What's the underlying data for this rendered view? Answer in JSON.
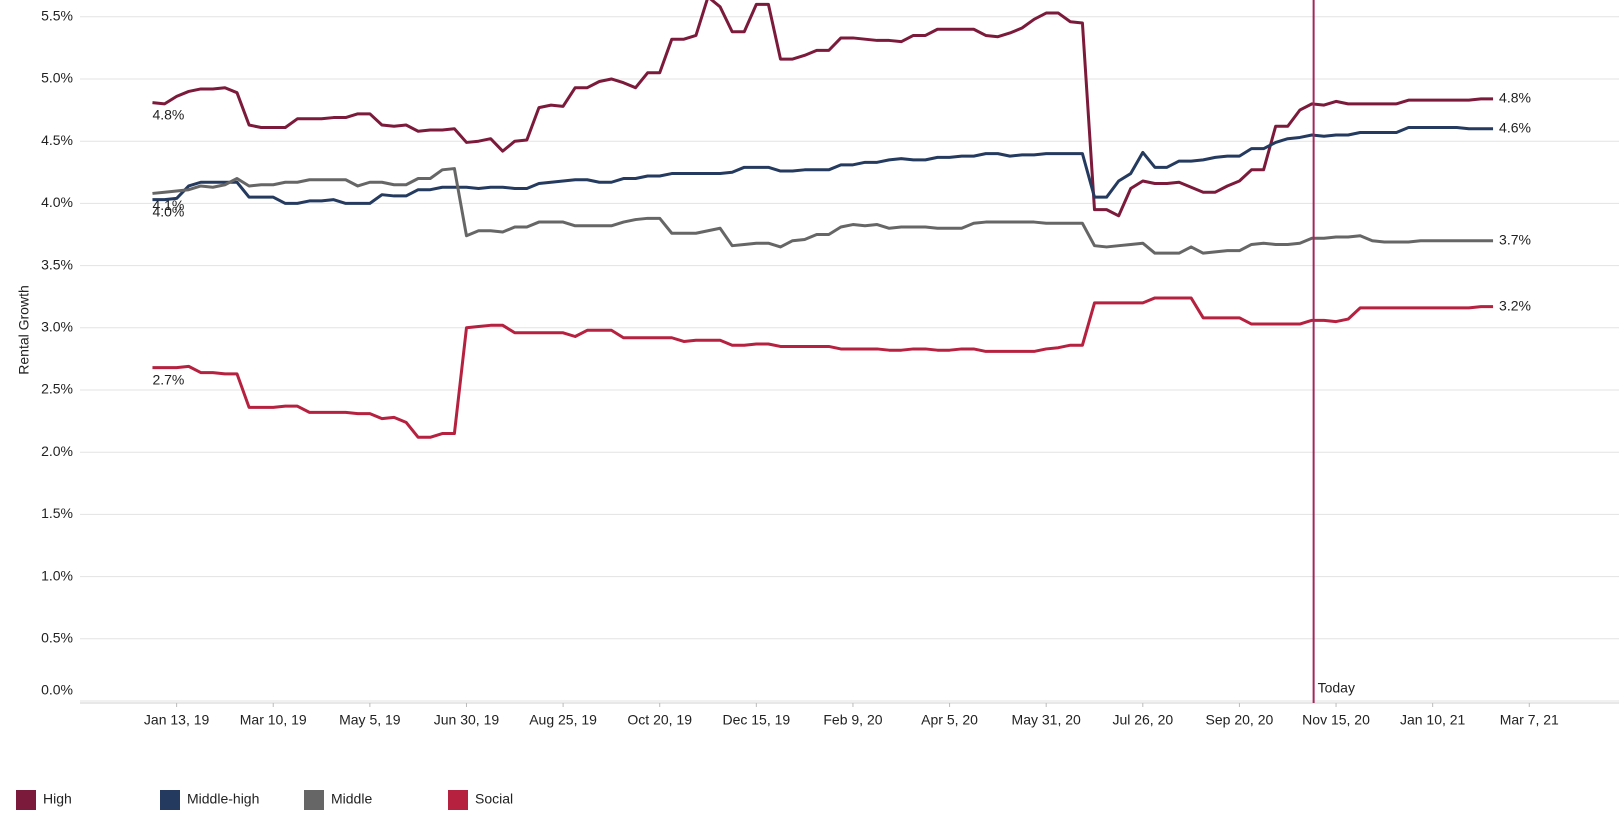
{
  "chart_data": {
    "type": "line",
    "y_label": "Rental Growth",
    "x": [
      "2018-12-30",
      "2019-01-06",
      "2019-01-13",
      "2019-01-20",
      "2019-01-27",
      "2019-02-03",
      "2019-02-10",
      "2019-02-17",
      "2019-02-24",
      "2019-03-03",
      "2019-03-10",
      "2019-03-17",
      "2019-03-24",
      "2019-03-31",
      "2019-04-07",
      "2019-04-14",
      "2019-04-21",
      "2019-04-28",
      "2019-05-05",
      "2019-05-12",
      "2019-05-19",
      "2019-05-26",
      "2019-06-02",
      "2019-06-09",
      "2019-06-16",
      "2019-06-23",
      "2019-06-30",
      "2019-07-07",
      "2019-07-14",
      "2019-07-21",
      "2019-07-28",
      "2019-08-04",
      "2019-08-11",
      "2019-08-18",
      "2019-08-25",
      "2019-09-01",
      "2019-09-08",
      "2019-09-15",
      "2019-09-22",
      "2019-09-29",
      "2019-10-06",
      "2019-10-13",
      "2019-10-20",
      "2019-10-27",
      "2019-11-03",
      "2019-11-10",
      "2019-11-17",
      "2019-11-24",
      "2019-12-01",
      "2019-12-08",
      "2019-12-15",
      "2019-12-22",
      "2019-12-29",
      "2020-01-05",
      "2020-01-12",
      "2020-01-19",
      "2020-01-26",
      "2020-02-02",
      "2020-02-09",
      "2020-02-16",
      "2020-02-23",
      "2020-03-01",
      "2020-03-08",
      "2020-03-15",
      "2020-03-22",
      "2020-03-29",
      "2020-04-05",
      "2020-04-12",
      "2020-04-19",
      "2020-04-26",
      "2020-05-03",
      "2020-05-10",
      "2020-05-17",
      "2020-05-24",
      "2020-05-31",
      "2020-06-07",
      "2020-06-14",
      "2020-06-21",
      "2020-06-28",
      "2020-07-05",
      "2020-07-12",
      "2020-07-19",
      "2020-07-26",
      "2020-08-02",
      "2020-08-09",
      "2020-08-16",
      "2020-08-23",
      "2020-08-30",
      "2020-09-06",
      "2020-09-13",
      "2020-09-20",
      "2020-09-27",
      "2020-10-04",
      "2020-10-11",
      "2020-10-18",
      "2020-10-25",
      "2020-11-01",
      "2020-11-08",
      "2020-11-15",
      "2020-11-22",
      "2020-11-29",
      "2020-12-06",
      "2020-12-13",
      "2020-12-20",
      "2020-12-27",
      "2021-01-03",
      "2021-01-10",
      "2021-01-17",
      "2021-01-24",
      "2021-01-31",
      "2021-02-07",
      "2021-02-14"
    ],
    "series": [
      {
        "name": "High",
        "color": "#7b1a3a",
        "values": [
          4.81,
          4.8,
          4.86,
          4.9,
          4.92,
          4.92,
          4.93,
          4.89,
          4.63,
          4.61,
          4.61,
          4.61,
          4.68,
          4.68,
          4.68,
          4.69,
          4.69,
          4.72,
          4.72,
          4.63,
          4.62,
          4.63,
          4.58,
          4.59,
          4.59,
          4.6,
          4.49,
          4.5,
          4.52,
          4.42,
          4.5,
          4.51,
          4.77,
          4.79,
          4.78,
          4.93,
          4.93,
          4.98,
          5.0,
          4.97,
          4.93,
          5.05,
          5.05,
          5.32,
          5.32,
          5.35,
          5.66,
          5.58,
          5.38,
          5.38,
          5.6,
          5.6,
          5.16,
          5.16,
          5.19,
          5.23,
          5.23,
          5.33,
          5.33,
          5.32,
          5.31,
          5.31,
          5.3,
          5.35,
          5.35,
          5.4,
          5.4,
          5.4,
          5.4,
          5.35,
          5.34,
          5.37,
          5.41,
          5.48,
          5.53,
          5.53,
          5.46,
          5.45,
          3.95,
          3.95,
          3.9,
          4.12,
          4.18,
          4.16,
          4.16,
          4.17,
          4.13,
          4.09,
          4.09,
          4.14,
          4.18,
          4.27,
          4.27,
          4.62,
          4.62,
          4.75,
          4.8,
          4.79,
          4.82,
          4.8,
          4.8,
          4.8,
          4.8,
          4.8,
          4.83,
          4.83,
          4.83,
          4.83,
          4.83,
          4.83,
          4.84,
          4.84
        ],
        "value_labels": {
          "0": "4.8%",
          "111": "4.8%"
        }
      },
      {
        "name": "Middle-high",
        "color": "#243a5e",
        "values": [
          4.03,
          4.03,
          4.04,
          4.14,
          4.17,
          4.17,
          4.17,
          4.17,
          4.05,
          4.05,
          4.05,
          4.0,
          4.0,
          4.02,
          4.02,
          4.03,
          4.0,
          4.0,
          4.0,
          4.07,
          4.06,
          4.06,
          4.11,
          4.11,
          4.13,
          4.13,
          4.13,
          4.12,
          4.13,
          4.13,
          4.12,
          4.12,
          4.16,
          4.17,
          4.18,
          4.19,
          4.19,
          4.17,
          4.17,
          4.2,
          4.2,
          4.22,
          4.22,
          4.24,
          4.24,
          4.24,
          4.24,
          4.24,
          4.25,
          4.29,
          4.29,
          4.29,
          4.26,
          4.26,
          4.27,
          4.27,
          4.27,
          4.31,
          4.31,
          4.33,
          4.33,
          4.35,
          4.36,
          4.35,
          4.35,
          4.37,
          4.37,
          4.38,
          4.38,
          4.4,
          4.4,
          4.38,
          4.39,
          4.39,
          4.4,
          4.4,
          4.4,
          4.4,
          4.05,
          4.05,
          4.18,
          4.24,
          4.41,
          4.29,
          4.29,
          4.34,
          4.34,
          4.35,
          4.37,
          4.38,
          4.38,
          4.44,
          4.44,
          4.49,
          4.52,
          4.53,
          4.55,
          4.54,
          4.55,
          4.55,
          4.57,
          4.57,
          4.57,
          4.57,
          4.61,
          4.61,
          4.61,
          4.61,
          4.61,
          4.6,
          4.6,
          4.6
        ],
        "value_labels": {
          "0": "4.0%",
          "111": "4.6%"
        }
      },
      {
        "name": "Middle",
        "color": "#666666",
        "values": [
          4.08,
          4.09,
          4.1,
          4.11,
          4.14,
          4.13,
          4.15,
          4.2,
          4.14,
          4.15,
          4.15,
          4.17,
          4.17,
          4.19,
          4.19,
          4.19,
          4.19,
          4.14,
          4.17,
          4.17,
          4.15,
          4.15,
          4.2,
          4.2,
          4.27,
          4.28,
          3.74,
          3.78,
          3.78,
          3.77,
          3.81,
          3.81,
          3.85,
          3.85,
          3.85,
          3.82,
          3.82,
          3.82,
          3.82,
          3.85,
          3.87,
          3.88,
          3.88,
          3.76,
          3.76,
          3.76,
          3.78,
          3.8,
          3.66,
          3.67,
          3.68,
          3.68,
          3.65,
          3.7,
          3.71,
          3.75,
          3.75,
          3.81,
          3.83,
          3.82,
          3.83,
          3.8,
          3.81,
          3.81,
          3.81,
          3.8,
          3.8,
          3.8,
          3.84,
          3.85,
          3.85,
          3.85,
          3.85,
          3.85,
          3.84,
          3.84,
          3.84,
          3.84,
          3.66,
          3.65,
          3.66,
          3.67,
          3.68,
          3.6,
          3.6,
          3.6,
          3.65,
          3.6,
          3.61,
          3.62,
          3.62,
          3.67,
          3.68,
          3.67,
          3.67,
          3.68,
          3.72,
          3.72,
          3.73,
          3.73,
          3.74,
          3.7,
          3.69,
          3.69,
          3.69,
          3.7,
          3.7,
          3.7,
          3.7,
          3.7,
          3.7,
          3.7
        ],
        "value_labels": {
          "0": "4.1%",
          "111": "3.7%"
        }
      },
      {
        "name": "Social",
        "color": "#b5213f",
        "values": [
          2.68,
          2.68,
          2.68,
          2.69,
          2.64,
          2.64,
          2.63,
          2.63,
          2.36,
          2.36,
          2.36,
          2.37,
          2.37,
          2.32,
          2.32,
          2.32,
          2.32,
          2.31,
          2.31,
          2.27,
          2.28,
          2.24,
          2.12,
          2.12,
          2.15,
          2.15,
          3.0,
          3.01,
          3.02,
          3.02,
          2.96,
          2.96,
          2.96,
          2.96,
          2.96,
          2.93,
          2.98,
          2.98,
          2.98,
          2.92,
          2.92,
          2.92,
          2.92,
          2.92,
          2.89,
          2.9,
          2.9,
          2.9,
          2.86,
          2.86,
          2.87,
          2.87,
          2.85,
          2.85,
          2.85,
          2.85,
          2.85,
          2.83,
          2.83,
          2.83,
          2.83,
          2.82,
          2.82,
          2.83,
          2.83,
          2.82,
          2.82,
          2.83,
          2.83,
          2.81,
          2.81,
          2.81,
          2.81,
          2.81,
          2.83,
          2.84,
          2.86,
          2.86,
          3.2,
          3.2,
          3.2,
          3.2,
          3.2,
          3.24,
          3.24,
          3.24,
          3.24,
          3.08,
          3.08,
          3.08,
          3.08,
          3.03,
          3.03,
          3.03,
          3.03,
          3.03,
          3.06,
          3.06,
          3.05,
          3.07,
          3.16,
          3.16,
          3.16,
          3.16,
          3.16,
          3.16,
          3.16,
          3.16,
          3.16,
          3.16,
          3.17,
          3.17
        ],
        "value_labels": {
          "0": "2.7%",
          "111": "3.2%"
        }
      }
    ],
    "xlim": [
      "2018-11-18",
      "2021-04-28"
    ],
    "xticks": [
      {
        "value": "2019-01-13",
        "label": "Jan 13, 19"
      },
      {
        "value": "2019-03-10",
        "label": "Mar 10, 19"
      },
      {
        "value": "2019-05-05",
        "label": "May 5, 19"
      },
      {
        "value": "2019-06-30",
        "label": "Jun 30, 19"
      },
      {
        "value": "2019-08-25",
        "label": "Aug 25, 19"
      },
      {
        "value": "2019-10-20",
        "label": "Oct 20, 19"
      },
      {
        "value": "2019-12-15",
        "label": "Dec 15, 19"
      },
      {
        "value": "2020-02-09",
        "label": "Feb 9, 20"
      },
      {
        "value": "2020-04-05",
        "label": "Apr 5, 20"
      },
      {
        "value": "2020-05-31",
        "label": "May 31, 20"
      },
      {
        "value": "2020-07-26",
        "label": "Jul 26, 20"
      },
      {
        "value": "2020-09-20",
        "label": "Sep 20, 20"
      },
      {
        "value": "2020-11-15",
        "label": "Nov 15, 20"
      },
      {
        "value": "2021-01-10",
        "label": "Jan 10, 21"
      },
      {
        "value": "2021-03-07",
        "label": "Mar 7, 21"
      }
    ],
    "ylim": [
      0,
      5.635
    ],
    "yticks": [
      {
        "value": 0,
        "label": "0.0%"
      },
      {
        "value": 0.5,
        "label": "0.5%"
      },
      {
        "value": 1,
        "label": "1.0%"
      },
      {
        "value": 1.5,
        "label": "1.5%"
      },
      {
        "value": 2,
        "label": "2.0%"
      },
      {
        "value": 2.5,
        "label": "2.5%"
      },
      {
        "value": 3,
        "label": "3.0%"
      },
      {
        "value": 3.5,
        "label": "3.5%"
      },
      {
        "value": 4,
        "label": "4.0%"
      },
      {
        "value": 4.5,
        "label": "4.5%"
      },
      {
        "value": 5,
        "label": "5.0%"
      },
      {
        "value": 5.5,
        "label": "5.5%"
      }
    ],
    "grid": true,
    "legend": "bottom-left",
    "today_line": {
      "x": "2020-11-02",
      "label": "Today",
      "color": "#a3285a"
    }
  }
}
